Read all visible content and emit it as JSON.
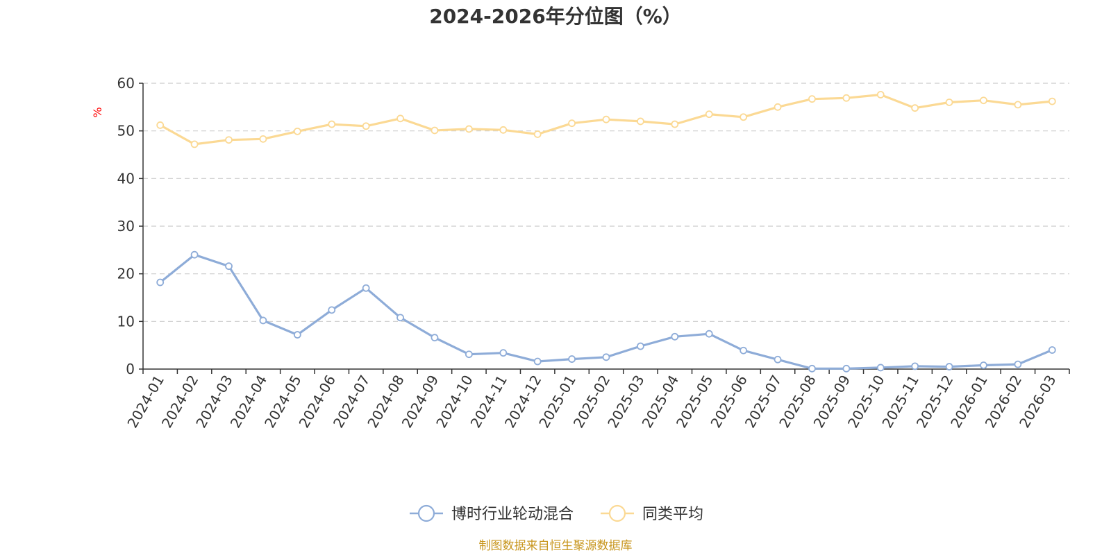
{
  "colors": {
    "series_main": "#8eacd8",
    "series_avg": "#fbd994",
    "axis": "#333333",
    "grid": "#cccccc",
    "unit": "#ff0000",
    "source": "#c8961e",
    "text": "#333333"
  },
  "chart_data": {
    "type": "line",
    "title": "2024-2026年分位图（%）",
    "ylabel": "%",
    "xlabel": "",
    "ylim": [
      0,
      60
    ],
    "yticks": [
      0,
      10,
      20,
      30,
      40,
      50,
      60
    ],
    "grid": true,
    "legend_position": "bottom",
    "categories": [
      "2024-01",
      "2024-02",
      "2024-03",
      "2024-04",
      "2024-05",
      "2024-06",
      "2024-07",
      "2024-08",
      "2024-09",
      "2024-10",
      "2024-11",
      "2024-12",
      "2025-01",
      "2025-02",
      "2025-03",
      "2025-04",
      "2025-05",
      "2025-06",
      "2025-07",
      "2025-08",
      "2025-09",
      "2025-10",
      "2025-11",
      "2025-12",
      "2026-01",
      "2026-02",
      "2026-03"
    ],
    "series": [
      {
        "name": "博时行业轮动混合",
        "color_key": "series_main",
        "values": [
          18.2,
          24.0,
          21.6,
          10.2,
          7.2,
          12.4,
          17.0,
          10.8,
          6.6,
          3.1,
          3.4,
          1.6,
          2.1,
          2.5,
          4.8,
          6.8,
          7.4,
          3.9,
          2.0,
          0.1,
          0.1,
          0.3,
          0.6,
          0.5,
          0.8,
          1.0,
          4.0
        ]
      },
      {
        "name": "同类平均",
        "color_key": "series_avg",
        "values": [
          51.2,
          47.2,
          48.1,
          48.3,
          49.9,
          51.4,
          51.0,
          52.6,
          50.1,
          50.4,
          50.2,
          49.3,
          51.6,
          52.4,
          52.0,
          51.4,
          53.5,
          52.9,
          55.0,
          56.7,
          56.9,
          57.6,
          54.8,
          56.0,
          56.4,
          55.5,
          56.2
        ]
      }
    ]
  },
  "footer": {
    "source": "制图数据来自恒生聚源数据库"
  }
}
